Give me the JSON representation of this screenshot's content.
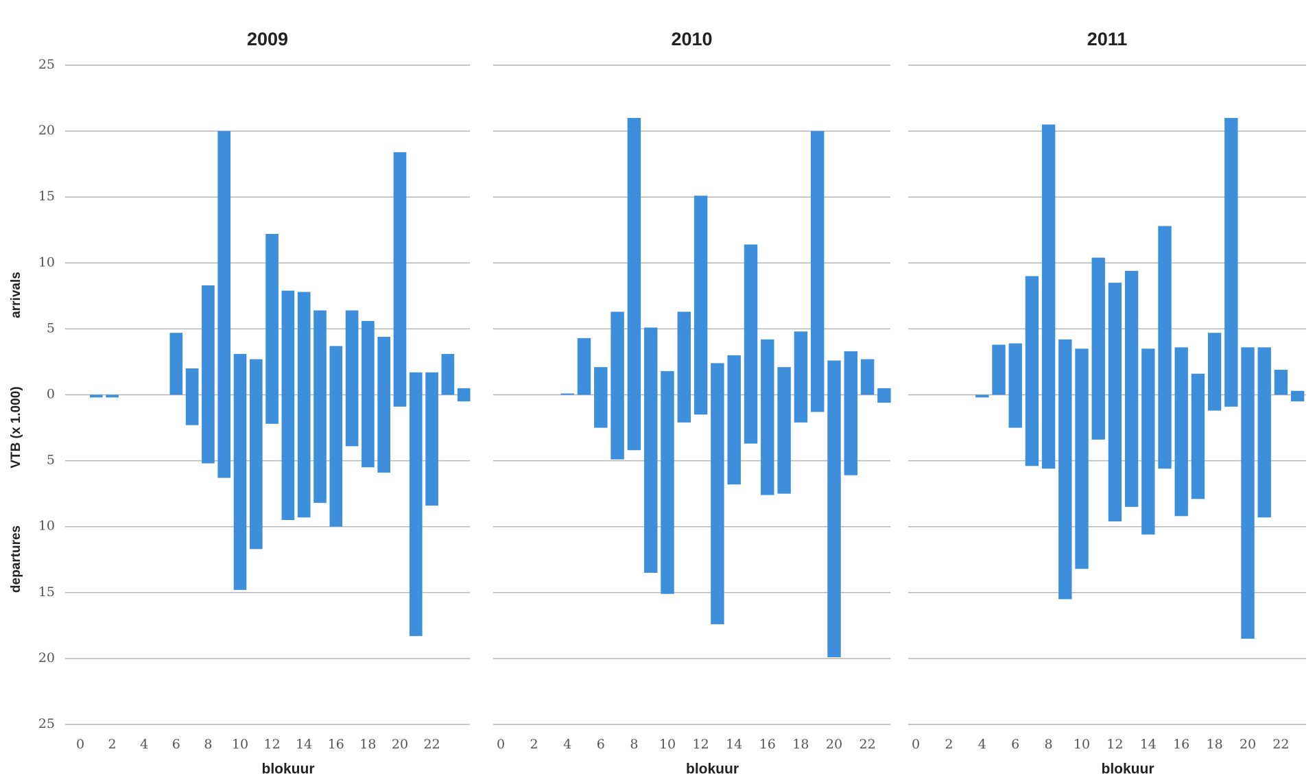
{
  "chart_data": [
    {
      "type": "bar",
      "title": "2009",
      "xlabel": "blokuur",
      "ylabel": "VTB (x 1.000)",
      "grid": true,
      "categories": [
        "0",
        null,
        "2",
        null,
        "4",
        null,
        "6",
        null,
        "8",
        null,
        "10",
        null,
        "12",
        null,
        "14",
        null,
        "16",
        null,
        "18",
        null,
        "20",
        null,
        "22",
        null,
        null
      ],
      "ylim": [
        -25,
        25
      ],
      "yticks": [
        25,
        20,
        15,
        10,
        5,
        0,
        {
          "value": -5,
          "label": "5"
        },
        {
          "value": -10,
          "label": "10"
        },
        {
          "value": -15,
          "label": "15"
        },
        {
          "value": -20,
          "label": "20"
        },
        {
          "value": -25,
          "label": "25"
        }
      ],
      "series": [
        {
          "name": "arrivals",
          "color": "#3d8fdb",
          "values": [
            0,
            0,
            0,
            0,
            0,
            0,
            4.7,
            2.0,
            8.3,
            20.0,
            3.1,
            2.7,
            12.2,
            7.9,
            7.8,
            6.4,
            3.7,
            6.4,
            5.6,
            4.4,
            18.4,
            1.7,
            1.7,
            3.1,
            0.5
          ]
        },
        {
          "name": "departures",
          "color": "#3d8fdb",
          "values": [
            0,
            -0.2,
            -0.2,
            0,
            0,
            0,
            0,
            -2.3,
            -5.2,
            -6.3,
            -14.8,
            -11.7,
            -2.2,
            -9.5,
            -9.3,
            -8.2,
            -10.0,
            -3.9,
            -5.5,
            -5.9,
            -0.9,
            -18.3,
            -8.4,
            0,
            -0.5
          ]
        }
      ]
    },
    {
      "type": "bar",
      "title": "2010",
      "xlabel": "blokuur",
      "grid": true,
      "sharey": true,
      "categories": [
        "0",
        null,
        "2",
        null,
        "4",
        null,
        "6",
        null,
        "8",
        null,
        "10",
        null,
        "12",
        null,
        "14",
        null,
        "16",
        null,
        "18",
        null,
        "20",
        null,
        "22",
        null
      ],
      "ylim": [
        -25,
        25
      ],
      "series": [
        {
          "color": "#3d8fdb",
          "values": [
            0,
            0,
            0,
            0,
            0.1,
            4.3,
            2.1,
            6.3,
            21.0,
            5.1,
            1.8,
            6.3,
            15.1,
            2.4,
            3.0,
            11.4,
            4.2,
            2.1,
            4.8,
            20.0,
            2.6,
            3.3,
            2.7,
            0.5
          ]
        },
        {
          "color": "#3d8fdb",
          "values": [
            0,
            0,
            0,
            0,
            0,
            0,
            -2.5,
            -4.9,
            -4.2,
            -13.5,
            -15.1,
            -2.1,
            -1.5,
            -17.4,
            -6.8,
            -3.7,
            -7.6,
            -7.5,
            -2.1,
            -1.3,
            -19.9,
            -6.1,
            0,
            -0.6
          ]
        }
      ]
    },
    {
      "type": "bar",
      "title": "2011",
      "xlabel": "blokuur",
      "grid": true,
      "sharey": true,
      "categories": [
        "0",
        null,
        "2",
        null,
        "4",
        null,
        "6",
        null,
        "8",
        null,
        "10",
        null,
        "12",
        null,
        "14",
        null,
        "16",
        null,
        "18",
        null,
        "20",
        null,
        "22",
        null
      ],
      "ylim": [
        -25,
        25
      ],
      "series": [
        {
          "color": "#3d8fdb",
          "values": [
            0,
            0,
            0,
            0,
            0,
            3.8,
            3.9,
            9.0,
            20.5,
            4.2,
            3.5,
            10.4,
            8.5,
            9.4,
            3.5,
            12.8,
            3.6,
            1.6,
            4.7,
            21.0,
            3.6,
            3.6,
            1.9,
            0.3
          ]
        },
        {
          "color": "#3d8fdb",
          "values": [
            0,
            0,
            0,
            0,
            -0.2,
            0,
            -2.5,
            -5.4,
            -5.6,
            -15.5,
            -13.2,
            -3.4,
            -9.6,
            -8.5,
            -10.6,
            -5.6,
            -9.2,
            -7.9,
            -1.2,
            -0.9,
            -18.5,
            -9.3,
            0,
            -0.5
          ]
        }
      ]
    }
  ]
}
